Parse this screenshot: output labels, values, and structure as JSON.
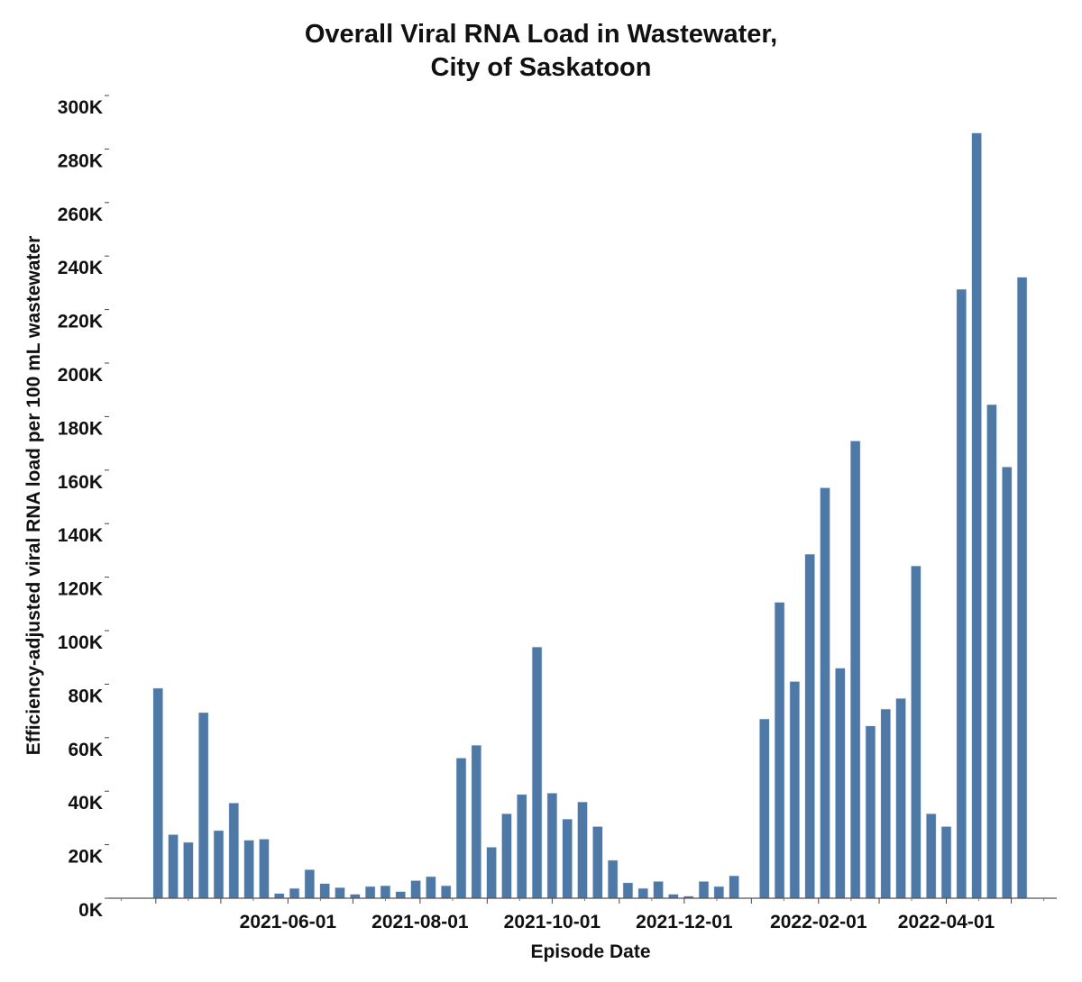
{
  "chart_data": {
    "type": "bar",
    "title": [
      "Overall Viral RNA Load in Wastewater,",
      "City of Saskatoon"
    ],
    "xlabel": "Episode Date",
    "ylabel": "Efficiency-adjusted viral RNA load per 100 mL wastewater",
    "ylim": [
      0,
      300000
    ],
    "xlim": [
      "2021-03-10",
      "2022-05-22"
    ],
    "grid": false,
    "bar_color": "#4e79a7",
    "y_ticks": [
      0,
      20000,
      40000,
      60000,
      80000,
      100000,
      120000,
      140000,
      160000,
      180000,
      200000,
      220000,
      240000,
      260000,
      280000,
      300000
    ],
    "y_tick_labels": [
      "0K",
      "20K",
      "40K",
      "60K",
      "80K",
      "100K",
      "120K",
      "140K",
      "160K",
      "180K",
      "200K",
      "220K",
      "240K",
      "260K",
      "280K",
      "300K"
    ],
    "x_tick_labels": [
      "2021-06-01",
      "2021-08-01",
      "2021-10-01",
      "2021-12-01",
      "2022-02-01",
      "2022-04-01"
    ],
    "x": [
      "2021-04-02",
      "2021-04-09",
      "2021-04-16",
      "2021-04-23",
      "2021-04-30",
      "2021-05-07",
      "2021-05-14",
      "2021-05-21",
      "2021-05-28",
      "2021-06-04",
      "2021-06-11",
      "2021-06-18",
      "2021-06-25",
      "2021-07-02",
      "2021-07-09",
      "2021-07-16",
      "2021-07-23",
      "2021-07-30",
      "2021-08-06",
      "2021-08-13",
      "2021-08-20",
      "2021-08-27",
      "2021-09-03",
      "2021-09-10",
      "2021-09-17",
      "2021-09-24",
      "2021-10-01",
      "2021-10-08",
      "2021-10-15",
      "2021-10-22",
      "2021-10-29",
      "2021-11-05",
      "2021-11-12",
      "2021-11-19",
      "2021-11-26",
      "2021-12-03",
      "2021-12-10",
      "2021-12-17",
      "2021-12-24",
      "2022-01-07",
      "2022-01-14",
      "2022-01-21",
      "2022-01-28",
      "2022-02-04",
      "2022-02-11",
      "2022-02-18",
      "2022-02-25",
      "2022-03-04",
      "2022-03-11",
      "2022-03-18",
      "2022-03-25",
      "2022-04-01",
      "2022-04-08",
      "2022-04-15",
      "2022-04-22",
      "2022-04-29",
      "2022-05-06"
    ],
    "values": [
      78500,
      23800,
      20900,
      69400,
      25300,
      35600,
      21700,
      22100,
      1800,
      3700,
      10700,
      5500,
      4000,
      1500,
      4400,
      4700,
      2500,
      6600,
      8100,
      4700,
      52400,
      57200,
      19100,
      31600,
      38800,
      93900,
      39300,
      29600,
      36000,
      26800,
      14200,
      5800,
      3700,
      6300,
      1500,
      800,
      6300,
      4400,
      8400,
      67000,
      110600,
      81000,
      128600,
      153400,
      86000,
      170900,
      64400,
      70700,
      74700,
      124200,
      31600,
      26800,
      227600,
      286000,
      184500,
      161200,
      232100
    ]
  }
}
